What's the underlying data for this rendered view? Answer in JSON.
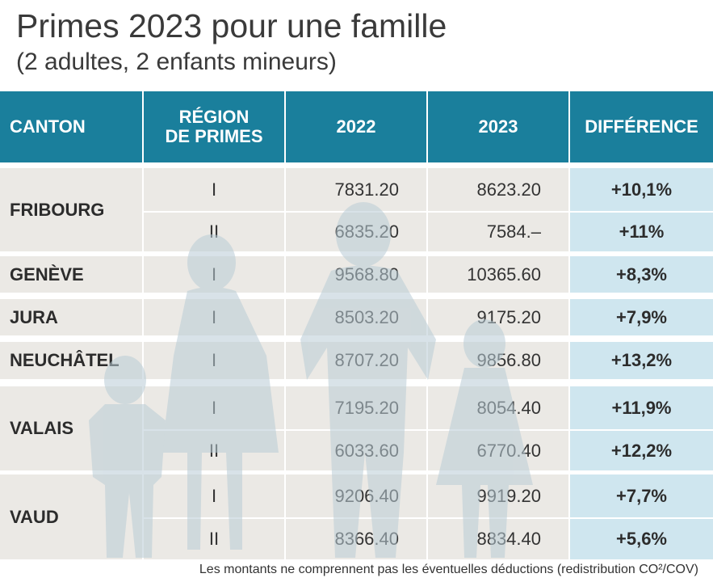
{
  "title": "Primes 2023 pour une famille",
  "subtitle": "(2 adultes, 2 enfants mineurs)",
  "footnote": "Les montants ne comprennent pas les éventuelles déductions (redistribution CO²/COV)",
  "colors": {
    "header": "#1a7f9c",
    "row": "#ebe9e5",
    "diff": "#cfe6ef",
    "silhouette": "#c9d7de"
  },
  "chart_data": {
    "type": "table",
    "columns": [
      "CANTON",
      "RÉGION\nDE PRIMES",
      "2022",
      "2023",
      "DIFFÉRENCE"
    ],
    "header_region_line1": "RÉGION",
    "header_region_line2": "DE PRIMES",
    "groups": [
      {
        "canton": "FRIBOURG",
        "rows": [
          {
            "region": "I",
            "y2022": "7831.20",
            "y2023": "8623.20",
            "diff": "+10,1%"
          },
          {
            "region": "II",
            "y2022": "6835.20",
            "y2023": "7584.–",
            "diff": "+11%"
          }
        ]
      },
      {
        "canton": "GENÈVE",
        "rows": [
          {
            "region": "I",
            "y2022": "9568.80",
            "y2023": "10365.60",
            "diff": "+8,3%"
          }
        ]
      },
      {
        "canton": "JURA",
        "rows": [
          {
            "region": "I",
            "y2022": "8503.20",
            "y2023": "9175.20",
            "diff": "+7,9%"
          }
        ]
      },
      {
        "canton": "NEUCHÂTEL",
        "rows": [
          {
            "region": "I",
            "y2022": "8707.20",
            "y2023": "9856.80",
            "diff": "+13,2%"
          }
        ]
      },
      {
        "canton": "VALAIS",
        "rows": [
          {
            "region": "I",
            "y2022": "7195.20",
            "y2023": "8054.40",
            "diff": "+11,9%"
          },
          {
            "region": "II",
            "y2022": "6033.60",
            "y2023": "6770.40",
            "diff": "+12,2%"
          }
        ]
      },
      {
        "canton": "VAUD",
        "rows": [
          {
            "region": "I",
            "y2022": "9206.40",
            "y2023": "9919.20",
            "diff": "+7,7%"
          },
          {
            "region": "II",
            "y2022": "8366.40",
            "y2023": "8834.40",
            "diff": "+5,6%"
          }
        ]
      }
    ]
  }
}
